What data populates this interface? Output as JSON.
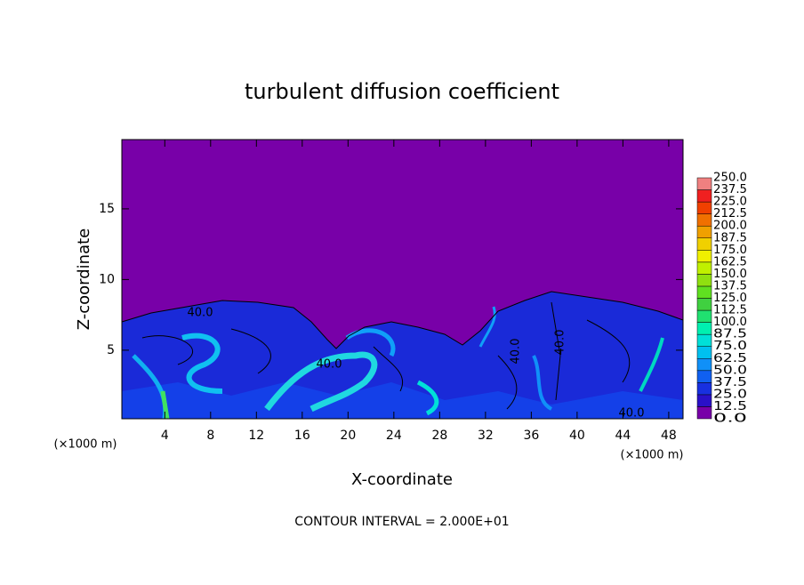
{
  "chart_data": {
    "type": "contour",
    "title": "turbulent diffusion coefficient",
    "x_label": "X-coordinate",
    "y_label": "Z-coordinate",
    "x_unit_label": "(×1000 m)",
    "footer": "CONTOUR INTERVAL = 2.000E+01",
    "contour_labels": [
      "40.0",
      "40.0",
      "40.0",
      "40.0",
      "40.0"
    ],
    "xlim": [
      0.25,
      49.25
    ],
    "ylim": [
      0.15,
      19.9
    ],
    "xticks": [
      4,
      8,
      12,
      16,
      20,
      24,
      28,
      32,
      36,
      40,
      44,
      48
    ],
    "yticks": [
      5,
      10,
      15
    ],
    "colorbar": {
      "lim": [
        0,
        250
      ],
      "levels": [
        {
          "value": 0,
          "label": "0.0"
        },
        {
          "value": 12.5,
          "label": "12.5"
        },
        {
          "value": 25,
          "label": "25.0"
        },
        {
          "value": 37.5,
          "label": "37.5"
        },
        {
          "value": 50,
          "label": "50.0"
        },
        {
          "value": 62.5,
          "label": "62.5"
        },
        {
          "value": 75,
          "label": "75.0"
        },
        {
          "value": 87.5,
          "label": "87.5"
        },
        {
          "value": 100,
          "label": "100.0"
        },
        {
          "value": 112.5,
          "label": "112.5"
        },
        {
          "value": 125,
          "label": "125.0"
        },
        {
          "value": 137.5,
          "label": "137.5"
        },
        {
          "value": 150,
          "label": "150.0"
        },
        {
          "value": 162.5,
          "label": "162.5"
        },
        {
          "value": 175,
          "label": "175.0"
        },
        {
          "value": 187.5,
          "label": "187.5"
        },
        {
          "value": 200,
          "label": "200.0"
        },
        {
          "value": 212.5,
          "label": "212.5"
        },
        {
          "value": 225,
          "label": "225.0"
        },
        {
          "value": 237.5,
          "label": "237.5"
        },
        {
          "value": 250,
          "label": "250.0"
        }
      ],
      "colors": [
        "#7800a8",
        "#2a10c8",
        "#1830e0",
        "#1060f0",
        "#1090f8",
        "#00c0f0",
        "#00e0d8",
        "#00f0b0",
        "#20e070",
        "#40d040",
        "#60e020",
        "#90e010",
        "#c0f000",
        "#f0f000",
        "#f0d000",
        "#f0a000",
        "#f07000",
        "#f04000",
        "#f02020",
        "#f08080"
      ]
    }
  }
}
